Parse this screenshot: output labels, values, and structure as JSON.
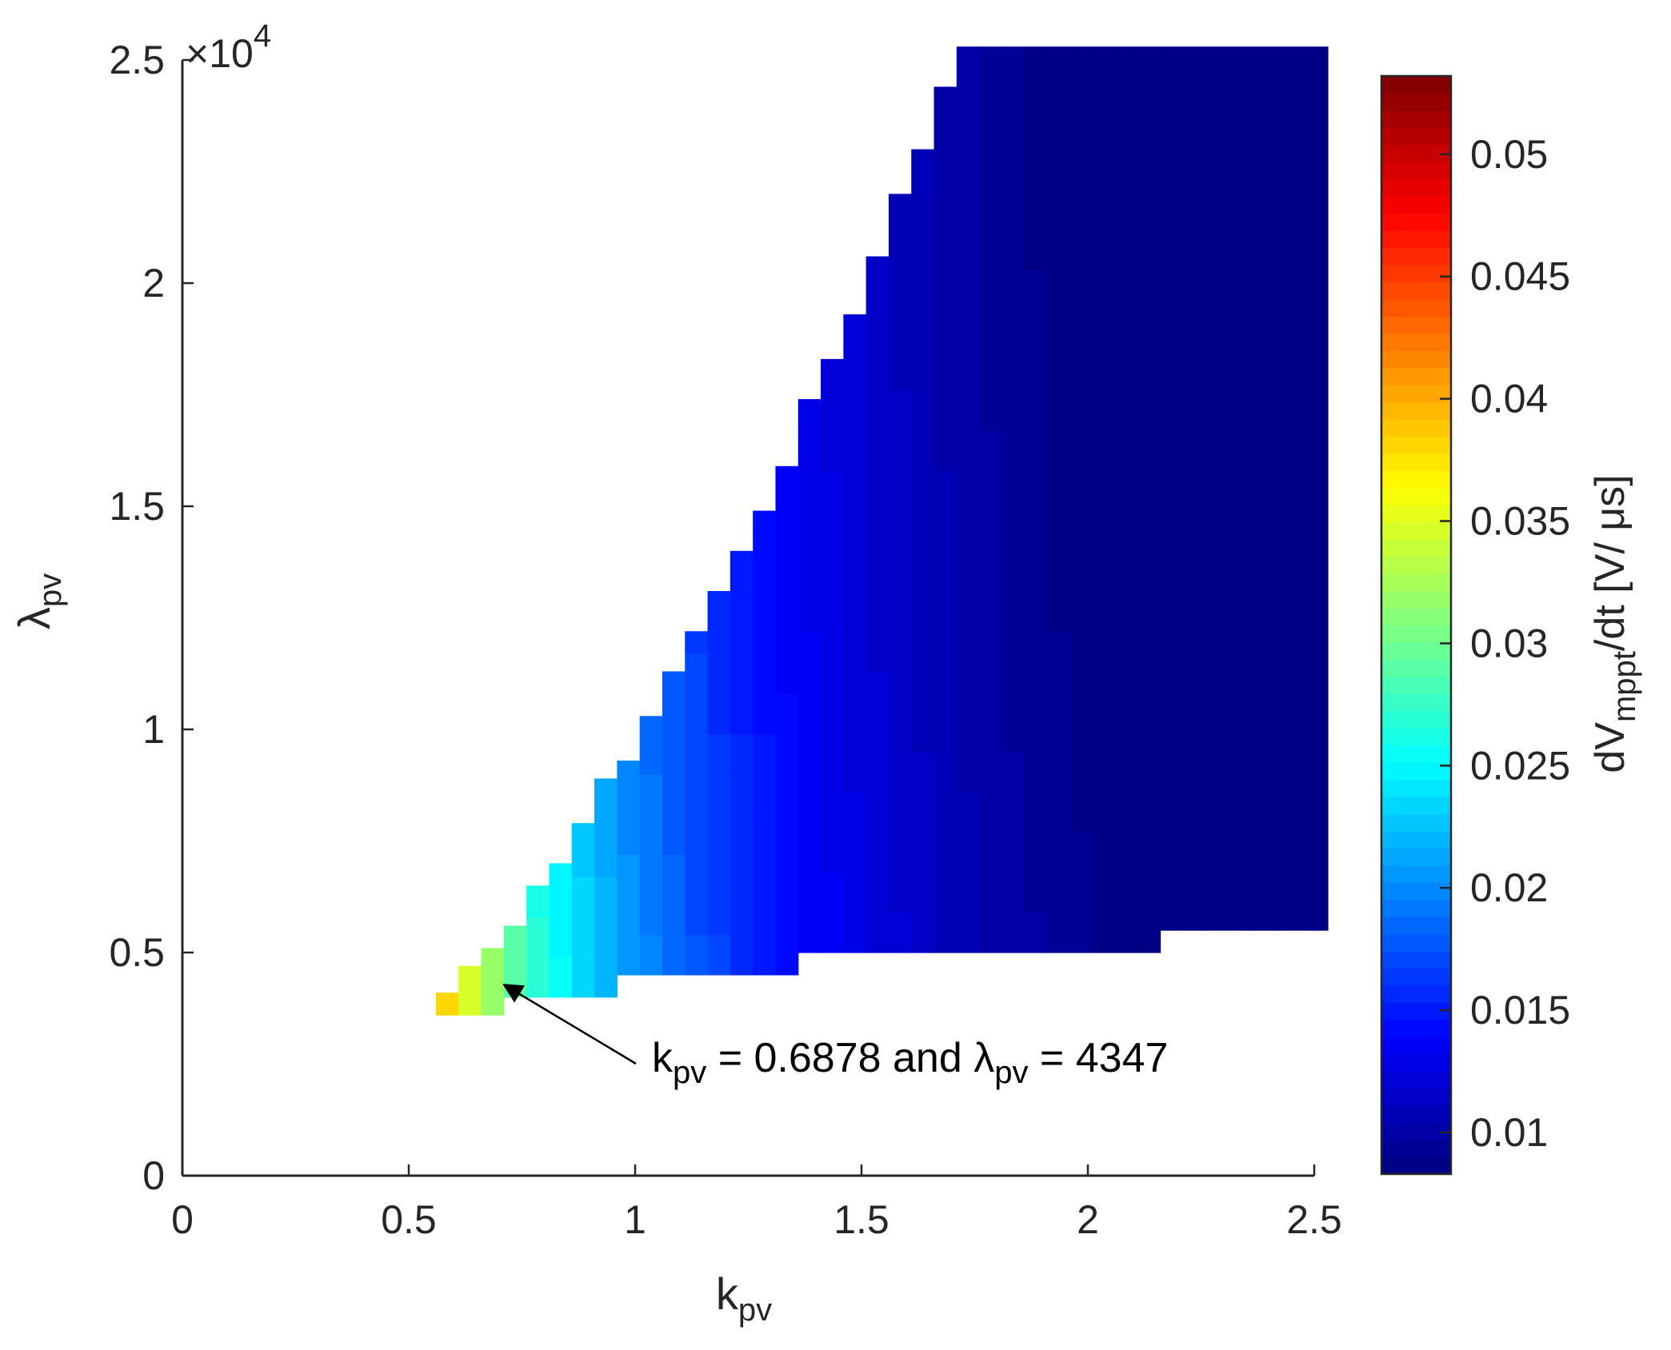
{
  "chart_data": {
    "type": "heatmap",
    "title": "",
    "xlabel": {
      "main": "k",
      "sub": "pv"
    },
    "ylabel": {
      "main": "λ",
      "sub": "pv"
    },
    "xlim": [
      0,
      2.5
    ],
    "ylim": [
      0,
      25000
    ],
    "x_ticks": [
      0,
      0.5,
      1,
      1.5,
      2,
      2.5
    ],
    "x_tick_labels": [
      "0",
      "0.5",
      "1",
      "1.5",
      "2",
      "2.5"
    ],
    "y_ticks": [
      0,
      5000,
      10000,
      15000,
      20000,
      25000
    ],
    "y_tick_labels": [
      "0",
      "0.5",
      "1",
      "1.5",
      "2",
      "2.5"
    ],
    "y_exponent_label": {
      "base": "×10",
      "power": "4"
    },
    "grid": false,
    "colormap": "jet",
    "colorbar": {
      "label": {
        "pre": "dV",
        "sub": "mppt",
        "post": "/dt [V/ μs]"
      },
      "range": [
        0.0083,
        0.0532
      ],
      "ticks": [
        0.01,
        0.015,
        0.02,
        0.025,
        0.03,
        0.035,
        0.04,
        0.045,
        0.05
      ],
      "tick_labels": [
        "0.01",
        "0.015",
        "0.02",
        "0.025",
        "0.03",
        "0.035",
        "0.04",
        "0.045",
        "0.05"
      ],
      "levels": 64
    },
    "grid_cell": {
      "dk": 0.05,
      "dlambda": 900
    },
    "region": {
      "x_start": 0.56,
      "x_end": 2.53,
      "top_edge": [
        {
          "x_from": 0.56,
          "x_to": 0.61,
          "y": 4100
        },
        {
          "x_from": 0.61,
          "x_to": 0.66,
          "y": 4700
        },
        {
          "x_from": 0.66,
          "x_to": 0.71,
          "y": 5100
        },
        {
          "x_from": 0.71,
          "x_to": 0.76,
          "y": 5600
        },
        {
          "x_from": 0.76,
          "x_to": 0.81,
          "y": 6500
        },
        {
          "x_from": 0.81,
          "x_to": 0.86,
          "y": 7000
        },
        {
          "x_from": 0.86,
          "x_to": 0.91,
          "y": 7900
        },
        {
          "x_from": 0.91,
          "x_to": 0.96,
          "y": 8900
        },
        {
          "x_from": 0.96,
          "x_to": 1.01,
          "y": 9300
        },
        {
          "x_from": 1.01,
          "x_to": 1.06,
          "y": 10300
        },
        {
          "x_from": 1.06,
          "x_to": 1.11,
          "y": 11300
        },
        {
          "x_from": 1.11,
          "x_to": 1.16,
          "y": 12200
        },
        {
          "x_from": 1.16,
          "x_to": 1.21,
          "y": 13100
        },
        {
          "x_from": 1.21,
          "x_to": 1.26,
          "y": 14000
        },
        {
          "x_from": 1.26,
          "x_to": 1.31,
          "y": 14900
        },
        {
          "x_from": 1.31,
          "x_to": 1.36,
          "y": 15900
        },
        {
          "x_from": 1.36,
          "x_to": 1.41,
          "y": 17400
        },
        {
          "x_from": 1.41,
          "x_to": 1.46,
          "y": 18300
        },
        {
          "x_from": 1.46,
          "x_to": 1.51,
          "y": 19300
        },
        {
          "x_from": 1.51,
          "x_to": 1.56,
          "y": 20600
        },
        {
          "x_from": 1.56,
          "x_to": 1.61,
          "y": 22000
        },
        {
          "x_from": 1.61,
          "x_to": 1.66,
          "y": 23000
        },
        {
          "x_from": 1.66,
          "x_to": 1.71,
          "y": 24400
        },
        {
          "x_from": 1.71,
          "x_to": 2.53,
          "y": 25300
        }
      ],
      "bottom_edge": [
        {
          "x_from": 0.56,
          "x_to": 0.73,
          "y": 3600
        },
        {
          "x_from": 0.73,
          "x_to": 0.96,
          "y": 4000
        },
        {
          "x_from": 0.96,
          "x_to": 1.36,
          "y": 4500
        },
        {
          "x_from": 1.36,
          "x_to": 2.15,
          "y": 5000
        },
        {
          "x_from": 2.15,
          "x_to": 2.53,
          "y": 5500
        }
      ]
    },
    "annotation": {
      "text_parts": [
        {
          "t": "k",
          "sub": false
        },
        {
          "t": "pv",
          "sub": true
        },
        {
          "t": " = 0.6878 and ",
          "sub": false
        },
        {
          "t": "λ",
          "sub": false
        },
        {
          "t": "pv",
          "sub": true
        },
        {
          "t": " = 4347",
          "sub": false
        }
      ],
      "point": {
        "x": 0.6878,
        "y": 4347
      }
    }
  }
}
